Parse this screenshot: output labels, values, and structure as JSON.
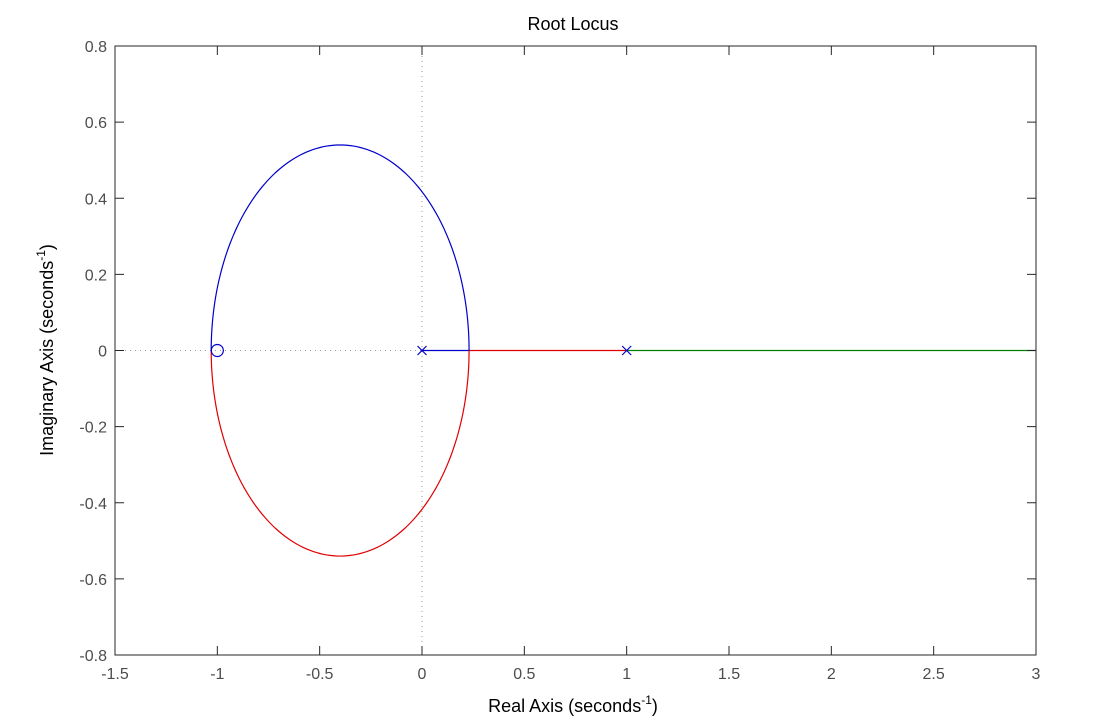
{
  "chart_data": {
    "type": "line",
    "title": "Root Locus",
    "xlabel": {
      "prefix": "Real Axis (seconds",
      "superscript": "-1",
      "suffix": ")"
    },
    "ylabel": {
      "prefix": "Imaginary Axis (seconds",
      "superscript": "-1",
      "suffix": ")"
    },
    "xlim": [
      -1.5,
      3
    ],
    "ylim": [
      -0.8,
      0.8
    ],
    "xticks": [
      -1.5,
      -1,
      -0.5,
      0,
      0.5,
      1,
      1.5,
      2,
      2.5,
      3
    ],
    "xtick_labels": [
      "-1.5",
      "-1",
      "-0.5",
      "0",
      "0.5",
      "1",
      "1.5",
      "2",
      "2.5",
      "3"
    ],
    "yticks": [
      -0.8,
      -0.6,
      -0.4,
      -0.2,
      0,
      0.2,
      0.4,
      0.6,
      0.8
    ],
    "ytick_labels": [
      "-0.8",
      "-0.6",
      "-0.4",
      "-0.2",
      "0",
      "0.2",
      "0.4",
      "0.6",
      "0.8"
    ],
    "grid": false,
    "legend": false,
    "ellipse": {
      "center_x": -0.4,
      "semi_axis_x": 0.63,
      "semi_axis_y": 0.54
    },
    "series": [
      {
        "color": "#0000cc",
        "segments": [
          {
            "kind": "line",
            "points": [
              [
                0,
                0
              ],
              [
                0.235,
                0
              ]
            ]
          },
          {
            "kind": "arc",
            "from_angle_deg": 0,
            "to_angle_deg": 180
          }
        ]
      },
      {
        "color": "#e00000",
        "segments": [
          {
            "kind": "line",
            "points": [
              [
                1,
                0
              ],
              [
                0.235,
                0
              ]
            ]
          },
          {
            "kind": "arc",
            "from_angle_deg": 0,
            "to_angle_deg": -180
          }
        ]
      },
      {
        "color": "#008000",
        "segments": [
          {
            "kind": "line",
            "points": [
              [
                1,
                0
              ],
              [
                3,
                0
              ]
            ]
          }
        ]
      }
    ],
    "poles": [
      [
        0,
        0
      ],
      [
        1,
        0
      ]
    ],
    "zeros": [
      [
        -1,
        0
      ]
    ],
    "marker_color": "#0000cc",
    "reference_line_color": "#999999"
  }
}
